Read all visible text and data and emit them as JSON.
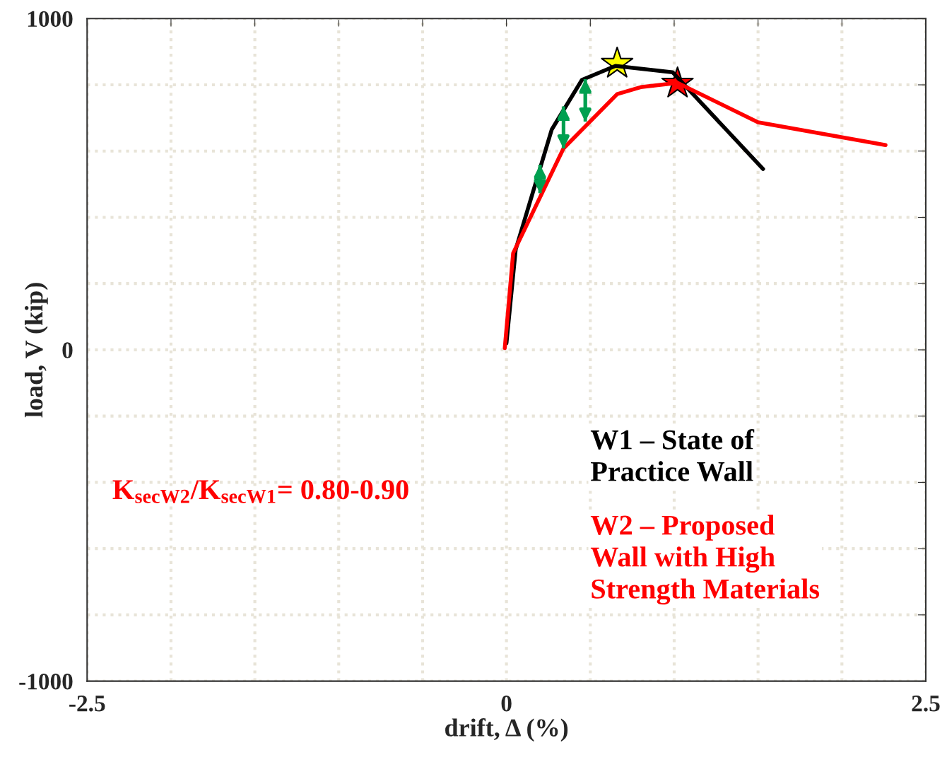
{
  "chart_data": {
    "type": "line",
    "xlabel": "drift, Δ (%)",
    "ylabel": "load, V (kip)",
    "xlim": [
      -2.5,
      2.5
    ],
    "ylim": [
      -1000,
      1000
    ],
    "xticks": [
      -2.5,
      {
        "value": -2,
        "label": null
      },
      {
        "value": -1.5,
        "label": null
      },
      {
        "value": -1,
        "label": null
      },
      {
        "value": -0.5,
        "label": null
      },
      0,
      {
        "value": 0.5,
        "label": null
      },
      {
        "value": 1,
        "label": null
      },
      {
        "value": 1.5,
        "label": null
      },
      {
        "value": 2,
        "label": null
      },
      2.5
    ],
    "yticks": [
      -1000,
      {
        "value": -800,
        "label": null
      },
      {
        "value": -600,
        "label": null
      },
      {
        "value": -400,
        "label": null
      },
      {
        "value": -200,
        "label": null
      },
      0,
      {
        "value": 200,
        "label": null
      },
      {
        "value": 400,
        "label": null
      },
      {
        "value": 600,
        "label": null
      },
      {
        "value": 800,
        "label": null
      },
      1000
    ],
    "grid": true,
    "legend": "bottom right",
    "series": [
      {
        "name": "W1 – State of\nPractice Wall",
        "color": "#000000",
        "x": [
          0.0,
          0.055,
          0.27,
          0.45,
          0.65,
          0.99,
          1.53
        ],
        "values": [
          20,
          303,
          665,
          815,
          857,
          838,
          546
        ]
      },
      {
        "name": "W2 – Proposed\nWall with High\nStrength Materials",
        "color": "#ff0000",
        "x": [
          -0.01,
          0.04,
          0.34,
          0.66,
          0.8,
          1.02,
          1.5,
          2.26
        ],
        "values": [
          5,
          292,
          608,
          772,
          793,
          806,
          687,
          618
        ]
      },
      {
        "type": "scatter",
        "marker": "star",
        "color": "#ffff00",
        "x": [
          0.66
        ],
        "values": [
          864
        ]
      },
      {
        "type": "scatter",
        "marker": "star",
        "color": "#ff0000",
        "x": [
          1.02
        ],
        "values": [
          804
        ]
      },
      {
        "type": "scatter",
        "marker": "triangle",
        "color": "#00a050",
        "x": [
          0.2,
          0.34,
          0.47
        ],
        "values": [
          534,
          710,
          792
        ],
        "errors": [
          [
            473,
            559
          ],
          [
            608,
            735
          ],
          [
            689,
            817
          ]
        ]
      }
    ],
    "annotations": [
      "K$_{secW2}$/K$_{secW1}$= 0.80-0.90"
    ]
  }
}
